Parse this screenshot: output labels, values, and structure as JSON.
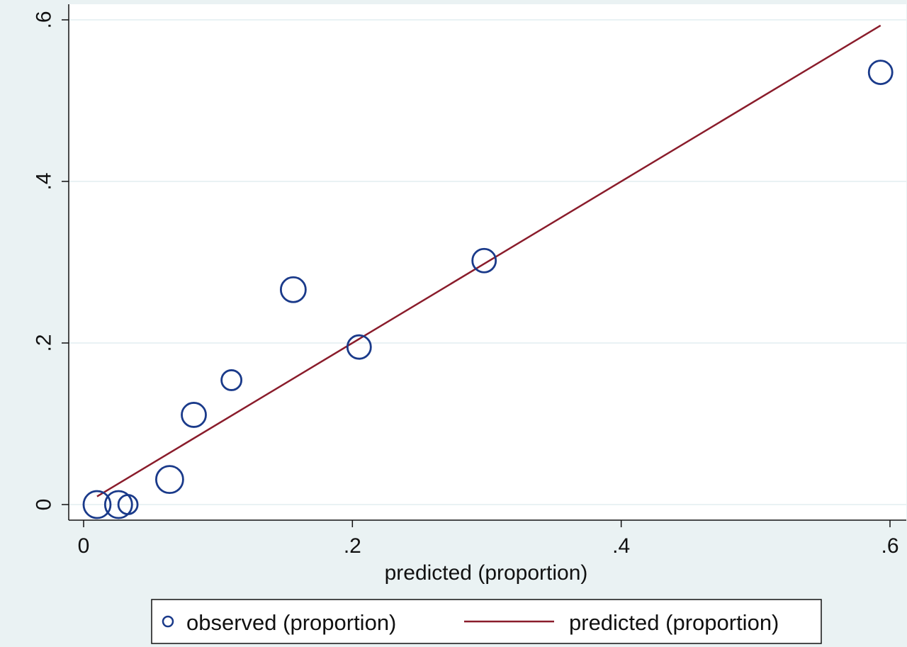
{
  "chart_data": {
    "type": "scatter",
    "xlabel": "predicted (proportion)",
    "ylabel": "",
    "xlim": [
      -0.01,
      0.61
    ],
    "ylim": [
      -0.02,
      0.62
    ],
    "xticks": [
      0,
      0.2,
      0.4,
      0.6
    ],
    "xtick_labels": [
      "0",
      ".2",
      ".4",
      ".6"
    ],
    "yticks": [
      0,
      0.2,
      0.4,
      0.6
    ],
    "ytick_labels": [
      "0",
      ".2",
      ".4",
      ".6"
    ],
    "grid": "horizontal",
    "legend_position": "bottom",
    "series": [
      {
        "name": "observed (proportion)",
        "kind": "scatter",
        "marker": "hollow-circle",
        "color": "#1a3a8a",
        "points": [
          {
            "x": 0.01,
            "y": 0.0,
            "weight": 1.0
          },
          {
            "x": 0.026,
            "y": 0.0,
            "weight": 1.0
          },
          {
            "x": 0.033,
            "y": 0.0,
            "weight": 0.45
          },
          {
            "x": 0.064,
            "y": 0.031,
            "weight": 1.0
          },
          {
            "x": 0.082,
            "y": 0.111,
            "weight": 0.8
          },
          {
            "x": 0.11,
            "y": 0.154,
            "weight": 0.5
          },
          {
            "x": 0.156,
            "y": 0.266,
            "weight": 0.85
          },
          {
            "x": 0.205,
            "y": 0.195,
            "weight": 0.75
          },
          {
            "x": 0.298,
            "y": 0.302,
            "weight": 0.75
          },
          {
            "x": 0.593,
            "y": 0.535,
            "weight": 0.75
          }
        ]
      },
      {
        "name": "predicted (proportion)",
        "kind": "line",
        "color": "#8a1c2b",
        "points": [
          {
            "x": 0.01,
            "y": 0.01
          },
          {
            "x": 0.593,
            "y": 0.593
          }
        ]
      }
    ]
  },
  "colors": {
    "background": "#eaf2f3",
    "plot_area": "#ffffff",
    "grid": "#e2eef0",
    "observed": "#1a3a8a",
    "predicted": "#8a1c2b"
  }
}
